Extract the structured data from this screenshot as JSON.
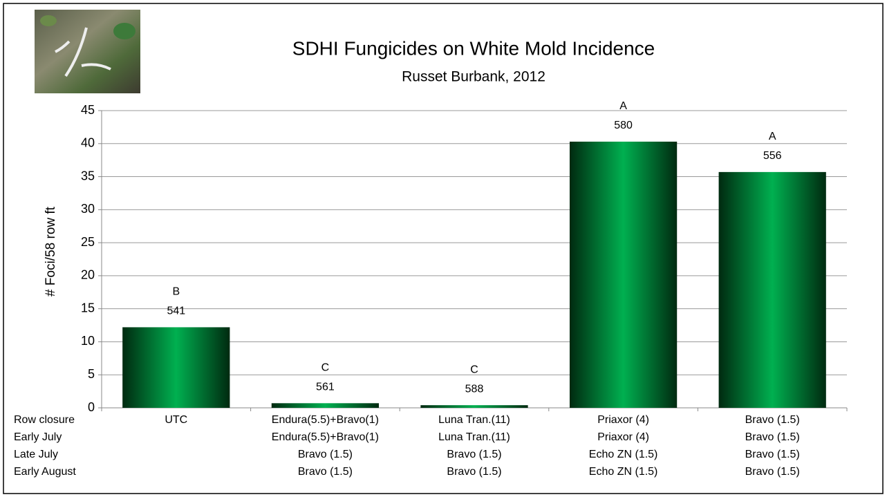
{
  "chart_data": {
    "type": "bar",
    "title": "SDHI Fungicides on White Mold Incidence",
    "subtitle": "Russet Burbank, 2012",
    "y_label": "# Foci/58 row ft",
    "row_labels": [
      "Row closure",
      "Early July",
      "Late July",
      "Early August"
    ],
    "categories": [
      [
        "UTC"
      ],
      [
        "Endura(5.5)+Bravo(1)",
        "Endura(5.5)+Bravo(1)",
        "Bravo (1.5)",
        "Bravo (1.5)"
      ],
      [
        "Luna Tran.(11)",
        "Luna Tran.(11)",
        "Bravo (1.5)",
        "Bravo (1.5)"
      ],
      [
        "Priaxor (4)",
        "Priaxor (4)",
        "Echo ZN (1.5)",
        "Echo ZN (1.5)"
      ],
      [
        "Bravo (1.5)",
        "Bravo (1.5)",
        "Bravo (1.5)",
        "Bravo (1.5)"
      ]
    ],
    "values": [
      12.2,
      0.7,
      0.4,
      40.3,
      35.7
    ],
    "letters": [
      "B",
      "C",
      "C",
      "A",
      "A"
    ],
    "counts": [
      541,
      561,
      588,
      580,
      556
    ],
    "color": "#00b050",
    "ylim": [
      0,
      45
    ],
    "yticks": [
      0,
      5,
      10,
      15,
      20,
      25,
      30,
      35,
      40,
      45
    ],
    "grid": true
  }
}
